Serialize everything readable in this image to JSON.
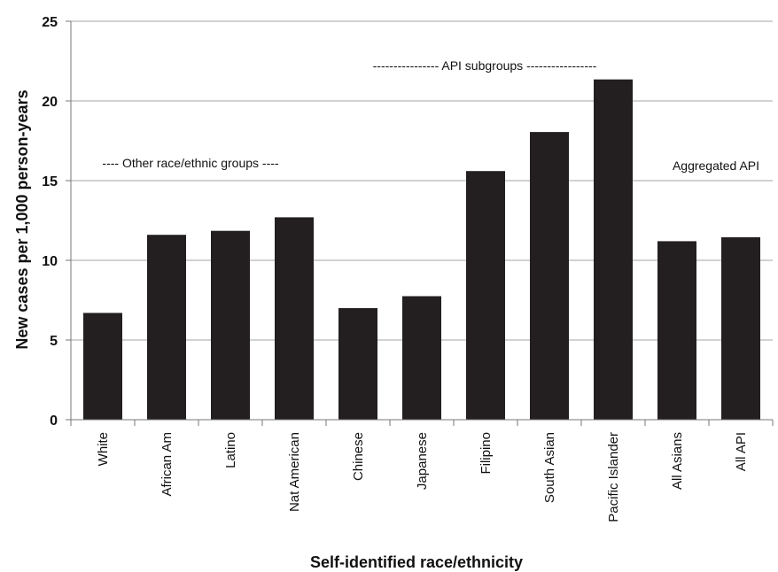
{
  "chart_data": {
    "type": "bar",
    "xlabel": "Self-identified race/ethnicity",
    "ylabel": "New cases per 1,000 person-years",
    "ylim": [
      0,
      25
    ],
    "yticks": [
      "0",
      "5",
      "10",
      "15",
      "20",
      "25"
    ],
    "grid": true,
    "categories": [
      "White",
      "African Am",
      "Latino",
      "Nat American",
      "Chinese",
      "Japanese",
      "Filipino",
      "South Asian",
      "Pacific Islander",
      "All Asians",
      "All API"
    ],
    "values": [
      6.7,
      11.6,
      11.85,
      12.7,
      7.0,
      7.75,
      15.6,
      18.05,
      21.35,
      11.2,
      11.45
    ],
    "bar_color": "#231f20",
    "annotations": [
      "---- Other race/ethnic groups ----",
      "---------------- API subgroups -----------------",
      "Aggregated API"
    ]
  }
}
